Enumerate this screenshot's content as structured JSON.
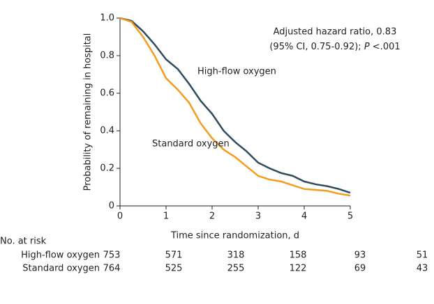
{
  "chart_data": {
    "type": "line",
    "x_label": "Time since randomization, d",
    "y_label": "Probability of remaining in hospital",
    "annotation_line1": "Adjusted hazard ratio, 0.83",
    "annotation_line2": [
      "(95% CI, 0.75-0.92); ",
      "P",
      " <.001"
    ],
    "x": [
      0,
      0.25,
      0.5,
      0.75,
      1,
      1.25,
      1.5,
      1.75,
      2,
      2.25,
      2.5,
      2.75,
      3,
      3.25,
      3.5,
      3.75,
      4,
      4.25,
      4.5,
      4.75,
      5
    ],
    "series": [
      {
        "name": "High-flow oxygen",
        "color": "#2f4b5c",
        "values": [
          1.0,
          0.985,
          0.93,
          0.86,
          0.78,
          0.73,
          0.65,
          0.56,
          0.49,
          0.4,
          0.34,
          0.29,
          0.23,
          0.2,
          0.175,
          0.16,
          0.13,
          0.115,
          0.105,
          0.09,
          0.07
        ]
      },
      {
        "name": "Standard oxygen",
        "color": "#f39c1f",
        "values": [
          1.0,
          0.98,
          0.9,
          0.8,
          0.68,
          0.62,
          0.55,
          0.44,
          0.36,
          0.3,
          0.26,
          0.21,
          0.16,
          0.14,
          0.13,
          0.11,
          0.09,
          0.085,
          0.08,
          0.065,
          0.055
        ]
      }
    ],
    "xlim": [
      0,
      5
    ],
    "xticks": [
      0,
      1,
      2,
      3,
      4,
      5
    ],
    "ylim": [
      0,
      1
    ],
    "yticks": [
      0,
      0.2,
      0.4,
      0.6,
      0.8,
      {
        "value": 1,
        "label": "1.0"
      }
    ],
    "risk_table": {
      "title": "No. at risk",
      "rows": [
        [
          753,
          571,
          318,
          158,
          93,
          51
        ],
        [
          764,
          525,
          255,
          122,
          69,
          43
        ]
      ]
    }
  }
}
